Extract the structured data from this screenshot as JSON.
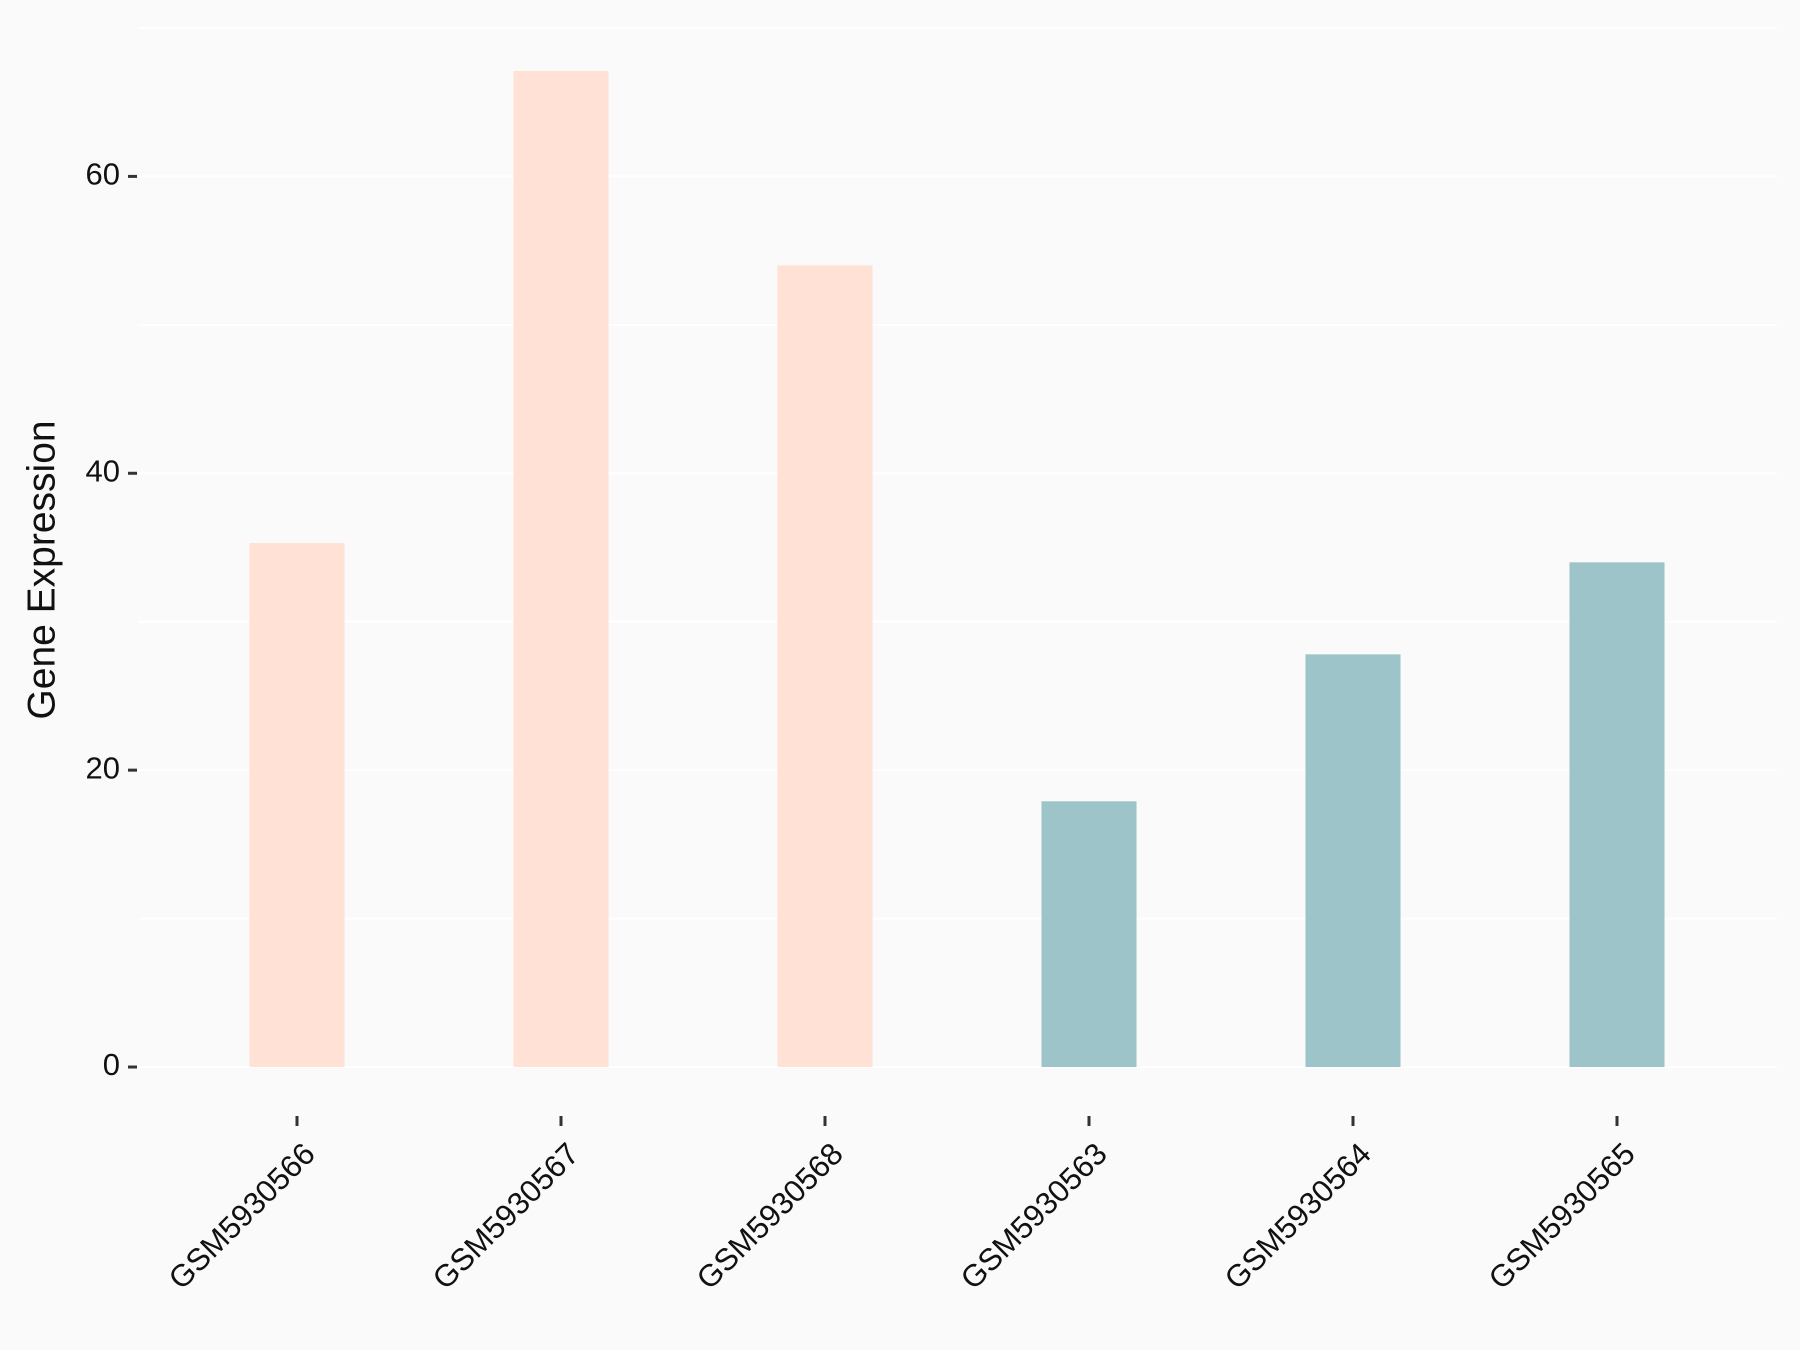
{
  "chart_data": {
    "type": "bar",
    "y_label": "Gene Expression",
    "categories": [
      "GSM5930566",
      "GSM5930567",
      "GSM5930568",
      "GSM5930563",
      "GSM5930564",
      "GSM5930565"
    ],
    "values": [
      35.3,
      67.1,
      54.0,
      17.9,
      27.8,
      34.0
    ],
    "colors": [
      "#ffe1d6",
      "#ffe1d6",
      "#ffe1d6",
      "#9dc4c8",
      "#9dc4c8",
      "#9dc4c8"
    ],
    "ylim": [
      -3.3,
      70.2
    ],
    "yticks": [
      0,
      20,
      40,
      60
    ],
    "minor_yticks": [
      10,
      30,
      50,
      70
    ],
    "grid": true
  }
}
